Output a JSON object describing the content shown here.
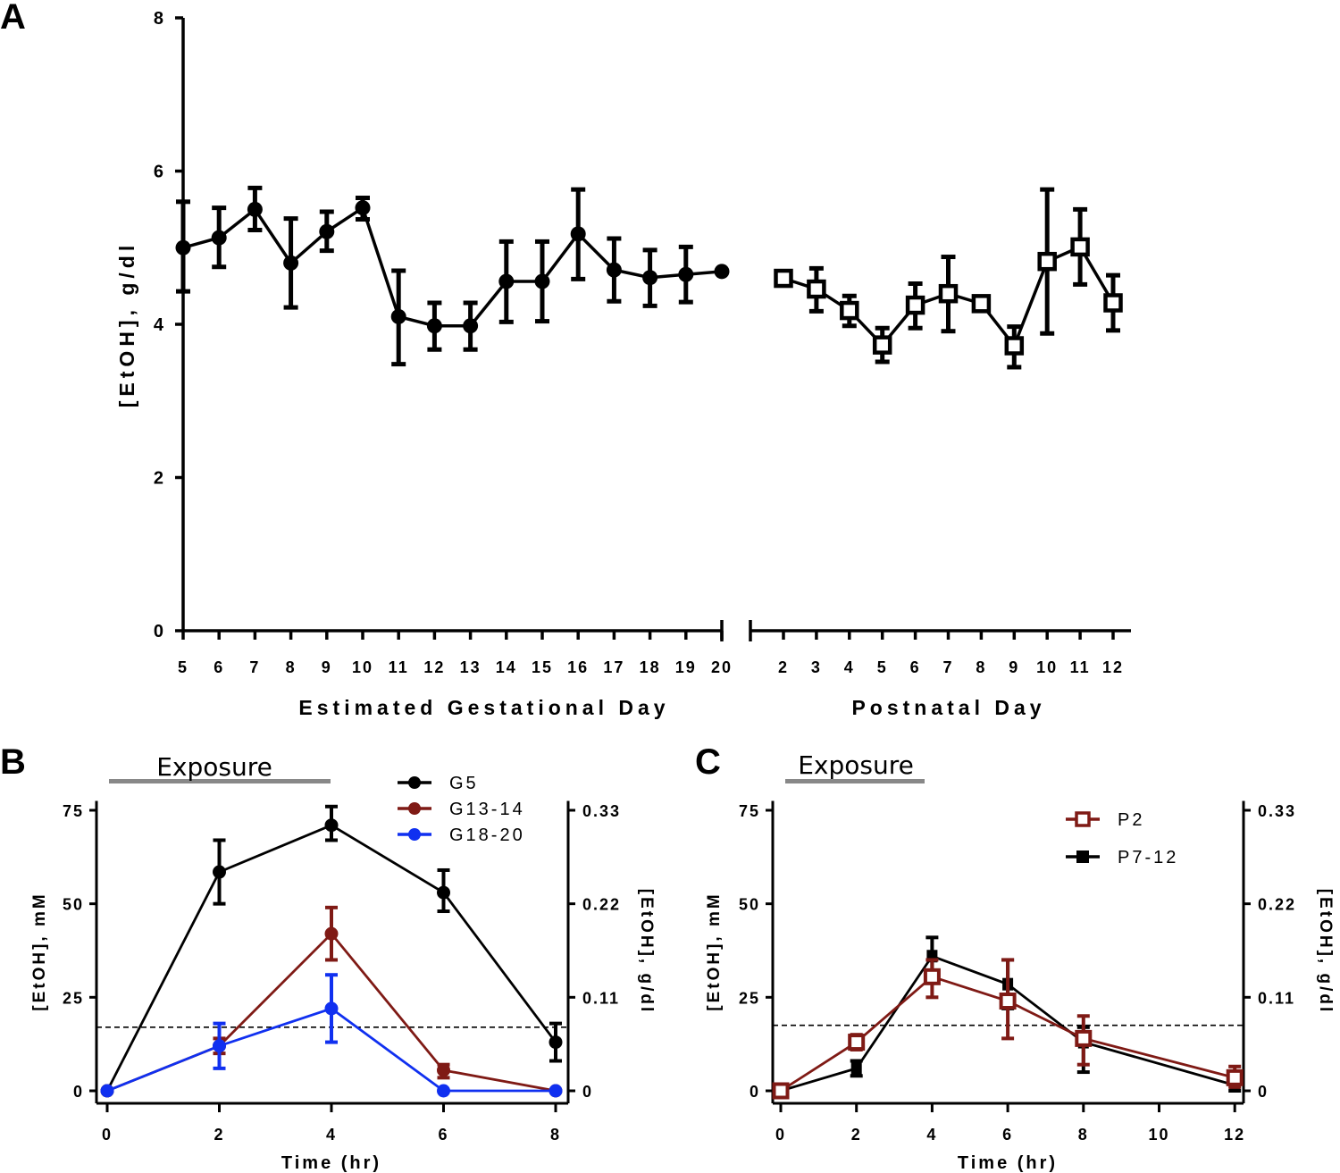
{
  "chart_data": [
    {
      "panel": "A",
      "type": "line",
      "ylabel": "[EtOH], g/dl",
      "ylim": [
        0,
        8
      ],
      "yticks": [
        0,
        2,
        4,
        6,
        8
      ],
      "segments": [
        {
          "xlabel": "Estimated Gestational Day",
          "marker": "filled-circle",
          "x": [
            5,
            6,
            7,
            8,
            9,
            10,
            11,
            12,
            13,
            14,
            15,
            16,
            17,
            18,
            19,
            20
          ],
          "y": [
            5.0,
            5.13,
            5.5,
            4.8,
            5.21,
            5.52,
            4.1,
            3.98,
            3.98,
            4.56,
            4.56,
            5.18,
            4.71,
            4.61,
            4.65,
            4.69
          ],
          "err_low": [
            4.43,
            4.75,
            5.23,
            4.22,
            4.96,
            5.37,
            3.48,
            3.67,
            3.67,
            4.03,
            4.04,
            4.59,
            4.3,
            4.24,
            4.29,
            null
          ],
          "err_high": [
            5.6,
            5.52,
            5.78,
            5.38,
            5.47,
            5.65,
            4.7,
            4.28,
            4.28,
            5.08,
            5.08,
            5.76,
            5.12,
            4.97,
            5.01,
            null
          ]
        },
        {
          "xlabel": "Postnatal Day",
          "marker": "open-square",
          "x": [
            2,
            3,
            4,
            5,
            6,
            7,
            8,
            9,
            10,
            11,
            12
          ],
          "y": [
            4.6,
            4.46,
            4.18,
            3.73,
            4.25,
            4.4,
            4.27,
            3.72,
            4.82,
            5.01,
            4.28
          ],
          "err_low": [
            null,
            4.17,
            3.98,
            3.51,
            3.95,
            3.91,
            null,
            3.44,
            3.88,
            4.52,
            3.92
          ],
          "err_high": [
            null,
            4.73,
            4.37,
            3.95,
            4.53,
            4.88,
            null,
            3.97,
            5.76,
            5.5,
            4.64
          ]
        }
      ]
    },
    {
      "panel": "B",
      "type": "line",
      "annotation": "Exposure",
      "exposure_range_hr": [
        0,
        4
      ],
      "xlabel": "Time (hr)",
      "ylabel": "[EtOH], mM",
      "y2label": "[EtOH], g/dl",
      "xlim": [
        0,
        8
      ],
      "xticks": [
        0,
        2,
        4,
        6,
        8
      ],
      "ylim": [
        0,
        75
      ],
      "yticks": [
        0,
        25,
        50,
        75
      ],
      "y2ticks": [
        "0",
        "0.11",
        "0.22",
        "0.33"
      ],
      "threshold": 17,
      "legend_position": "top-right",
      "series": [
        {
          "name": "G5",
          "color": "#000000",
          "x": [
            0,
            2,
            4,
            6,
            8
          ],
          "y": [
            0,
            58.5,
            71,
            53,
            13
          ],
          "err_low": [
            null,
            50,
            67,
            48,
            8
          ],
          "err_high": [
            null,
            67,
            76,
            59,
            18
          ]
        },
        {
          "name": "G13-14",
          "color": "#7f1a15",
          "x": [
            0,
            2,
            4,
            6,
            8
          ],
          "y": [
            0,
            12,
            42,
            5.5,
            0
          ],
          "err_low": [
            null,
            10,
            35,
            3.5,
            null
          ],
          "err_high": [
            null,
            14,
            49,
            7,
            null
          ]
        },
        {
          "name": "G18-20",
          "color": "#1030f0",
          "x": [
            0,
            2,
            4,
            6,
            8
          ],
          "y": [
            0,
            12,
            22,
            0,
            0
          ],
          "err_low": [
            null,
            6,
            13,
            null,
            null
          ],
          "err_high": [
            null,
            18,
            31,
            null,
            null
          ]
        }
      ]
    },
    {
      "panel": "C",
      "type": "line",
      "annotation": "Exposure",
      "exposure_range_hr": [
        0,
        4
      ],
      "xlabel": "Time (hr)",
      "ylabel": "[EtOH], mM",
      "y2label": "[EtOH], g/dl",
      "xlim": [
        0,
        12
      ],
      "xticks": [
        0,
        2,
        4,
        6,
        8,
        10,
        12
      ],
      "ylim": [
        0,
        75
      ],
      "yticks": [
        0,
        25,
        50,
        75
      ],
      "y2ticks": [
        "0",
        "0.11",
        "0.22",
        "0.33"
      ],
      "threshold": 17.5,
      "legend_position": "top-right",
      "series": [
        {
          "name": "P7-12",
          "color": "#000000",
          "marker": "filled-square",
          "x": [
            0,
            2,
            4,
            6,
            8,
            12
          ],
          "y": [
            0,
            6,
            36,
            28.5,
            13,
            1.5
          ],
          "err_low": [
            null,
            4,
            31,
            22,
            5,
            0
          ],
          "err_high": [
            null,
            8,
            41,
            35,
            17,
            3
          ]
        },
        {
          "name": "P2",
          "color": "#7f1a15",
          "marker": "open-square",
          "x": [
            0,
            2,
            4,
            6,
            8,
            12
          ],
          "y": [
            0,
            13,
            30.5,
            24,
            14,
            3.5
          ],
          "err_low": [
            null,
            11,
            25,
            14,
            7,
            1
          ],
          "err_high": [
            null,
            15,
            35,
            35,
            20,
            6.5
          ]
        }
      ]
    }
  ],
  "labels": {
    "panel_a": "A",
    "panel_b": "B",
    "panel_c": "C",
    "a_ylabel": "[EtOH], g/dl",
    "a_xlabel1": "Estimated Gestational Day",
    "a_xlabel2": "Postnatal Day",
    "exposure": "Exposure",
    "time_label": "Time (hr)",
    "mm_label": "[EtOH], mM",
    "gdl_label": "[EtOH], g/dl"
  }
}
